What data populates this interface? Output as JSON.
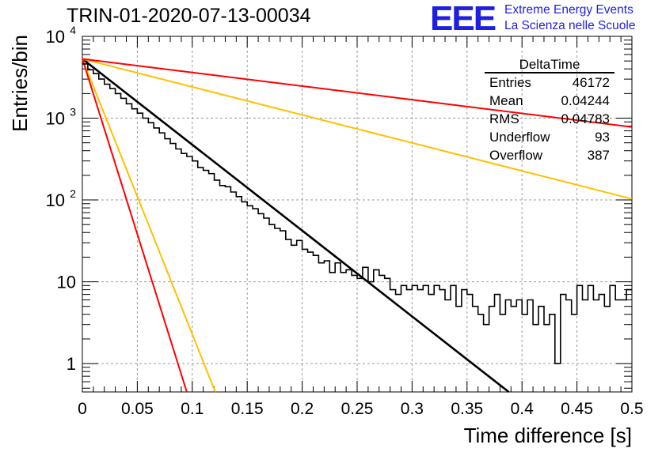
{
  "title": "TRIN-01-2020-07-13-00034",
  "logo": {
    "mark": "EEE",
    "line1": "Extreme Energy Events",
    "line2": "La Scienza nelle Scuole",
    "color": "#1f1fe0"
  },
  "stats_box": {
    "title": "DeltaTime",
    "rows": [
      {
        "label": "Entries",
        "value": "46172"
      },
      {
        "label": "Mean",
        "value": "0.04244"
      },
      {
        "label": "RMS",
        "value": "0.04783"
      },
      {
        "label": "Underflow",
        "value": "93"
      },
      {
        "label": "Overflow",
        "value": "387"
      }
    ]
  },
  "chart_data": {
    "type": "line",
    "xlabel": "Time difference [s]",
    "ylabel": "Entries/bin",
    "xlim": [
      0,
      0.5
    ],
    "ylim": [
      0.45,
      10000
    ],
    "yscale": "log",
    "grid": true,
    "x_ticks": [
      "0",
      "0.05",
      "0.1",
      "0.15",
      "0.2",
      "0.25",
      "0.3",
      "0.35",
      "0.4",
      "0.45",
      "0.5"
    ],
    "y_ticks": [
      {
        "value": 1,
        "label": "1"
      },
      {
        "value": 10,
        "label": "10"
      },
      {
        "value": 100,
        "label": "10",
        "exp": "2"
      },
      {
        "value": 1000,
        "label": "10",
        "exp": "3"
      },
      {
        "value": 10000,
        "label": "10",
        "exp": "4"
      }
    ],
    "histogram": {
      "bin_width": 0.005,
      "color": "#000000",
      "counts": [
        4600,
        3900,
        3500,
        3000,
        2600,
        2300,
        2000,
        1750,
        1500,
        1300,
        1150,
        1000,
        880,
        760,
        660,
        560,
        490,
        420,
        370,
        340,
        300,
        250,
        230,
        210,
        175,
        150,
        145,
        125,
        110,
        95,
        85,
        78,
        68,
        60,
        50,
        45,
        42,
        33,
        28,
        32,
        25,
        23,
        21,
        17,
        18,
        13,
        17,
        13,
        14,
        12,
        11,
        15,
        10,
        14,
        12,
        11,
        8,
        7,
        9,
        8,
        9,
        8,
        9,
        7,
        9,
        8,
        6,
        9,
        5,
        8,
        7,
        5,
        4,
        3,
        5,
        7,
        4,
        6,
        5,
        6,
        4,
        6,
        3,
        5,
        3,
        4,
        1,
        7,
        6,
        4,
        9,
        6,
        9,
        6,
        7,
        5,
        9,
        6,
        6,
        8
      ]
    },
    "series": [
      {
        "color": "#000000",
        "points": [
          [
            0,
            5300
          ],
          [
            0.388,
            0.45
          ]
        ]
      },
      {
        "color": "#ffc000",
        "points": [
          [
            0,
            5300
          ],
          [
            0.5,
            103
          ]
        ]
      },
      {
        "color": "#ff0000",
        "points": [
          [
            0,
            5300
          ],
          [
            0.5,
            780
          ]
        ]
      },
      {
        "color": "#ffc000",
        "points": [
          [
            0,
            5300
          ],
          [
            0.121,
            0.45
          ]
        ]
      },
      {
        "color": "#ff0000",
        "points": [
          [
            0,
            5300
          ],
          [
            0.095,
            0.45
          ]
        ]
      }
    ]
  }
}
